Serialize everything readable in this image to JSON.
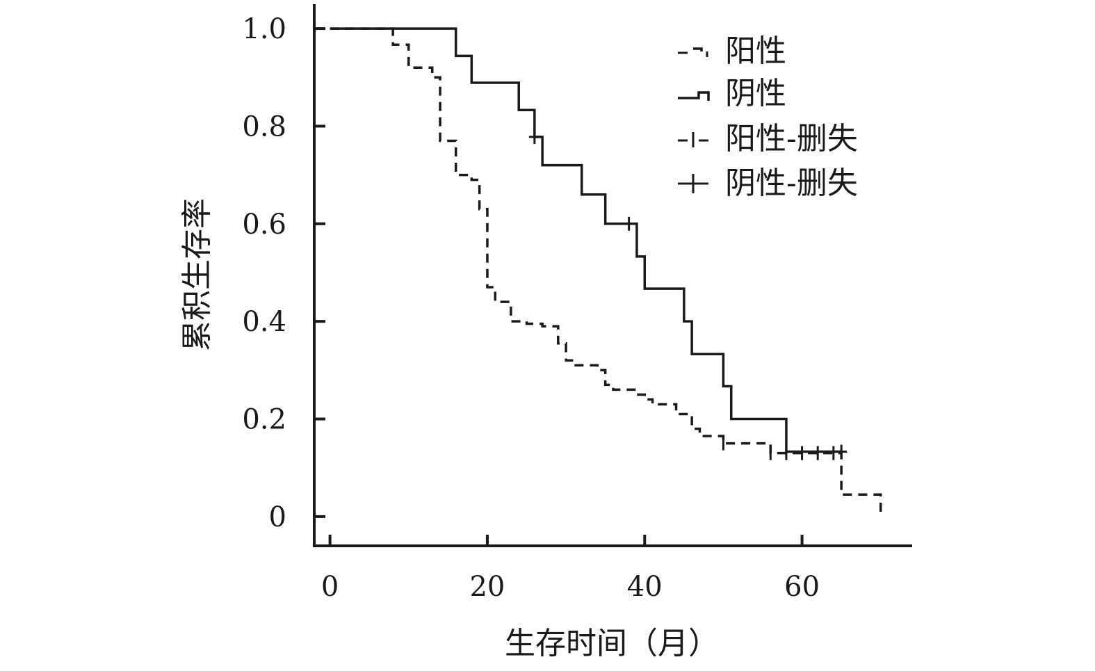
{
  "chart_data": {
    "type": "line",
    "step": true,
    "xlabel": "生存时间（月）",
    "ylabel": "累积生存率",
    "xlim": [
      -2,
      74
    ],
    "ylim": [
      -0.06,
      1.05
    ],
    "x_ticks": [
      0,
      20,
      40,
      60
    ],
    "y_ticks": [
      {
        "value": 0,
        "label": "0"
      },
      {
        "value": 0.2,
        "label": "0.2"
      },
      {
        "value": 0.4,
        "label": "0.4"
      },
      {
        "value": 0.6,
        "label": "0.6"
      },
      {
        "value": 0.8,
        "label": "0.8"
      },
      {
        "value": 1.0,
        "label": "1.0"
      }
    ],
    "grid": false,
    "legend_position": "top-right",
    "legend": [
      {
        "label": "阳性",
        "marker": "dashed-step"
      },
      {
        "label": "阴性",
        "marker": "solid-step"
      },
      {
        "label": "阳性-删失",
        "marker": "dashed-censor"
      },
      {
        "label": "阴性-删失",
        "marker": "solid-censor"
      }
    ],
    "series": [
      {
        "name": "阳性",
        "style": "dashed",
        "points": [
          [
            0,
            1.0
          ],
          [
            8,
            0.967
          ],
          [
            10,
            0.92
          ],
          [
            13,
            0.9
          ],
          [
            14,
            0.86
          ],
          [
            14,
            0.77
          ],
          [
            16,
            0.74
          ],
          [
            16,
            0.7
          ],
          [
            18,
            0.69
          ],
          [
            19,
            0.63
          ],
          [
            20,
            0.5
          ],
          [
            20,
            0.47
          ],
          [
            21,
            0.44
          ],
          [
            23,
            0.4
          ],
          [
            25,
            0.395
          ],
          [
            27,
            0.39
          ],
          [
            29,
            0.355
          ],
          [
            30,
            0.32
          ],
          [
            31,
            0.31
          ],
          [
            34,
            0.3
          ],
          [
            35,
            0.27
          ],
          [
            36,
            0.26
          ],
          [
            39,
            0.25
          ],
          [
            40,
            0.24
          ],
          [
            41,
            0.23
          ],
          [
            44,
            0.21
          ],
          [
            46,
            0.18
          ],
          [
            47,
            0.165
          ],
          [
            50,
            0.15
          ],
          [
            56,
            0.13
          ],
          [
            65,
            0.13
          ],
          [
            65,
            0.045
          ],
          [
            70,
            0.045
          ],
          [
            70,
            0.0
          ]
        ],
        "censored": [
          [
            50,
            0.15
          ],
          [
            56,
            0.13
          ],
          [
            58,
            0.13
          ],
          [
            60,
            0.13
          ],
          [
            62,
            0.13
          ],
          [
            64,
            0.13
          ]
        ]
      },
      {
        "name": "阴性",
        "style": "solid",
        "points": [
          [
            0,
            1.0
          ],
          [
            16,
            0.944
          ],
          [
            18,
            0.889
          ],
          [
            24,
            0.833
          ],
          [
            26,
            0.778
          ],
          [
            27,
            0.72
          ],
          [
            32,
            0.66
          ],
          [
            35,
            0.6
          ],
          [
            39,
            0.533
          ],
          [
            40,
            0.467
          ],
          [
            45,
            0.4
          ],
          [
            46,
            0.333
          ],
          [
            50,
            0.267
          ],
          [
            51,
            0.2
          ],
          [
            58,
            0.133
          ],
          [
            65,
            0.133
          ]
        ],
        "censored": [
          [
            26,
            0.778
          ],
          [
            38,
            0.6
          ],
          [
            65,
            0.133
          ]
        ]
      }
    ]
  }
}
